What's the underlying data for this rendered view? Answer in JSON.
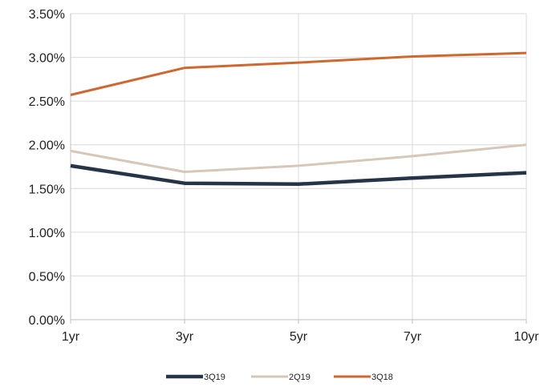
{
  "chart_data": {
    "type": "line",
    "categories": [
      "1yr",
      "3yr",
      "5yr",
      "7yr",
      "10yr"
    ],
    "ylim": [
      0,
      3.5
    ],
    "y_ticks": [
      {
        "value": 0.0,
        "label": "0.00%"
      },
      {
        "value": 0.5,
        "label": "0.50%"
      },
      {
        "value": 1.0,
        "label": "1.00%"
      },
      {
        "value": 1.5,
        "label": "1.50%"
      },
      {
        "value": 2.0,
        "label": "2.00%"
      },
      {
        "value": 2.5,
        "label": "2.50%"
      },
      {
        "value": 3.0,
        "label": "3.00%"
      },
      {
        "value": 3.5,
        "label": "3.50%"
      }
    ],
    "grid": true,
    "legend_position": "bottom",
    "series": [
      {
        "name": "3Q19",
        "color": "#253447",
        "values": [
          1.76,
          1.56,
          1.55,
          1.62,
          1.68
        ]
      },
      {
        "name": "2Q19",
        "color": "#d6c7b8",
        "values": [
          1.93,
          1.69,
          1.76,
          1.87,
          2.0
        ]
      },
      {
        "name": "3Q18",
        "color": "#cf6730",
        "values": [
          2.57,
          2.88,
          2.94,
          3.01,
          3.05
        ]
      }
    ]
  }
}
